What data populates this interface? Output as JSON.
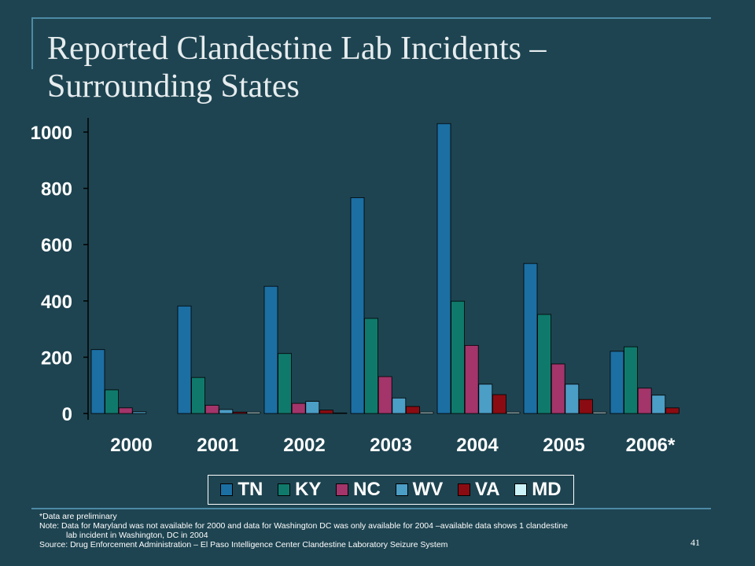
{
  "slide": {
    "title_line1": "Reported Clandestine Lab Incidents –",
    "title_line2": "Surrounding States",
    "note1": "*Data are preliminary",
    "note2a": "Note: Data for Maryland was not available for 2000 and data for Washington DC was only available for 2004 –available data shows 1 clandestine",
    "note2b": "lab incident in Washington, DC in 2004",
    "note3": "Source:  Drug Enforcement Administration – El Paso Intelligence Center Clandestine Laboratory Seizure System",
    "page_number": "41"
  },
  "chart_data": {
    "type": "bar",
    "categories": [
      "2000",
      "2001",
      "2002",
      "2003",
      "2004",
      "2005",
      "2006*"
    ],
    "ylim": [
      0,
      1000
    ],
    "yticks": [
      0,
      200,
      400,
      600,
      800,
      1000
    ],
    "legend_position": "bottom",
    "grid": false,
    "series": [
      {
        "name": "TN",
        "color": "#1b6fa3",
        "values": [
          227,
          382,
          452,
          767,
          1030,
          533,
          221
        ]
      },
      {
        "name": "KY",
        "color": "#0f7a6c",
        "values": [
          84,
          128,
          213,
          338,
          399,
          352,
          237
        ]
      },
      {
        "name": "NC",
        "color": "#a3356b",
        "values": [
          20,
          29,
          36,
          131,
          242,
          176,
          90
        ]
      },
      {
        "name": "WV",
        "color": "#4b9ec6",
        "values": [
          6,
          14,
          43,
          55,
          104,
          104,
          65
        ]
      },
      {
        "name": "VA",
        "color": "#8a0c12",
        "values": [
          0,
          5,
          12,
          25,
          67,
          50,
          20
        ]
      },
      {
        "name": "MD",
        "color": "#ccf2f7",
        "values": [
          0,
          5,
          2,
          5,
          5,
          5,
          0
        ]
      }
    ]
  }
}
